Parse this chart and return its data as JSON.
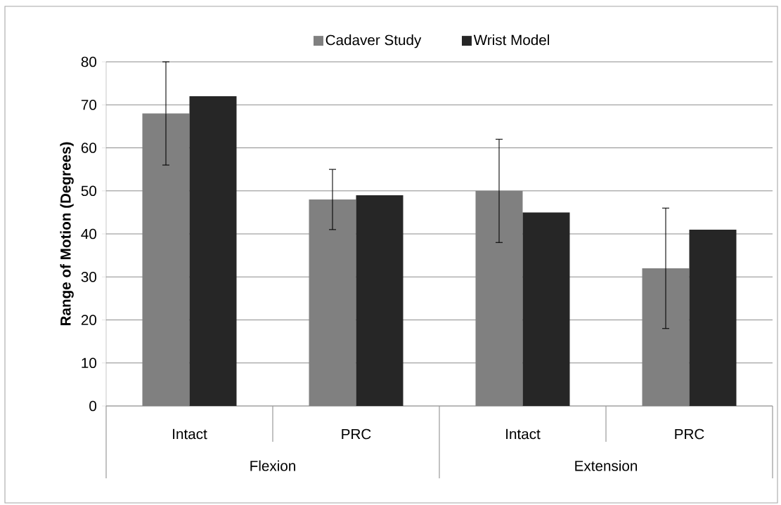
{
  "chart_data": {
    "type": "bar",
    "ylabel": "Range of Motion (Degrees)",
    "categories": [
      "Intact",
      "PRC",
      "Intact",
      "PRC"
    ],
    "series": [
      {
        "name": "Cadaver Study",
        "color": "#808080",
        "values": [
          68,
          48,
          50,
          32
        ],
        "errors": [
          12,
          7,
          12,
          14
        ]
      },
      {
        "name": "Wrist Model",
        "color": "#262626",
        "values": [
          72,
          49,
          45,
          41
        ]
      }
    ],
    "ylim": [
      0,
      80
    ],
    "yticks": [
      0,
      10,
      20,
      30,
      40,
      50,
      60,
      70,
      80
    ],
    "grid": "y",
    "legend": "top",
    "annotations": [
      "Flexion",
      "Extension"
    ]
  }
}
